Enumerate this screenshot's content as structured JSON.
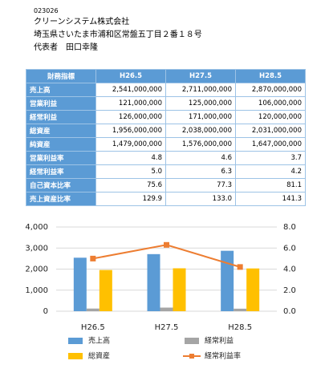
{
  "header": {
    "lines": [
      "023026",
      "クリーンシステム株式会社",
      "埼玉県さいたま市浦和区常盤五丁目２番１８号",
      "代表者　田口幸隆"
    ]
  },
  "table": {
    "header": [
      "財務指標",
      "H26.5",
      "H27.5",
      "H28.5"
    ],
    "rows": [
      [
        "売上高",
        "2,541,000,000",
        "2,711,000,000",
        "2,870,000,000"
      ],
      [
        "営業利益",
        "121,000,000",
        "125,000,000",
        "106,000,000"
      ],
      [
        "経常利益",
        "126,000,000",
        "171,000,000",
        "120,000,000"
      ],
      [
        "総資産",
        "1,956,000,000",
        "2,038,000,000",
        "2,031,000,000"
      ],
      [
        "純資産",
        "1,479,000,000",
        "1,576,000,000",
        "1,647,000,000"
      ],
      [
        "営業利益率",
        "4.8",
        "4.6",
        "3.7"
      ],
      [
        "経常利益率",
        "5.0",
        "6.3",
        "4.2"
      ],
      [
        "自己資本比率",
        "75.6",
        "77.3",
        "81.1"
      ],
      [
        "売上資産比率",
        "129.9",
        "133.0",
        "141.3"
      ]
    ]
  },
  "chart_data": {
    "type": "bar",
    "categories": [
      "H26.5",
      "H27.5",
      "H28.5"
    ],
    "series": [
      {
        "name": "売上高",
        "color": "#5b9bd5",
        "values": [
          2541,
          2711,
          2870
        ]
      },
      {
        "name": "経常利益",
        "color": "#a5a5a5",
        "values": [
          126,
          171,
          120
        ]
      },
      {
        "name": "総資産",
        "color": "#ffc000",
        "values": [
          1956,
          2038,
          2031
        ]
      },
      {
        "name": "経常利益率",
        "color": "#ed7d31",
        "type": "line",
        "axis": "y2",
        "values": [
          5.0,
          6.3,
          4.2
        ]
      }
    ],
    "ylim": [
      0,
      4000
    ],
    "yticks": [
      0,
      {
        "value": 1000,
        "label": "1,000"
      },
      {
        "value": 2000,
        "label": "2,000"
      },
      {
        "value": 3000,
        "label": "3,000"
      },
      {
        "value": 4000,
        "label": "4,000"
      }
    ],
    "y2lim": [
      0,
      8
    ],
    "y2ticks": [
      {
        "value": 0,
        "label": "0.0"
      },
      {
        "value": 2,
        "label": "2.0"
      },
      {
        "value": 4,
        "label": "4.0"
      },
      {
        "value": 6,
        "label": "6.0"
      },
      {
        "value": 8,
        "label": "8.0"
      }
    ],
    "grid": true
  }
}
